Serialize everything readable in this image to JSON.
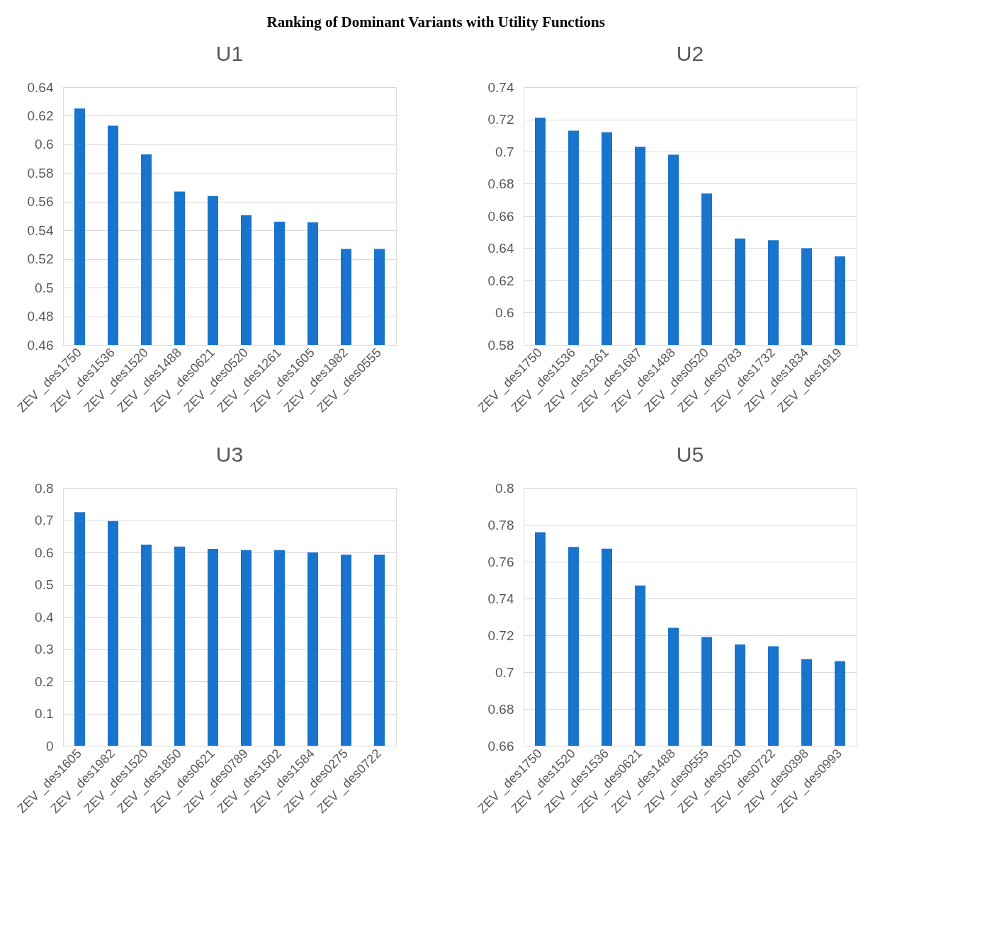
{
  "chart_data": [
    {
      "type": "bar",
      "title": "U1",
      "annotations": [
        "Ranking of Dominant Variants with Utility Functions"
      ],
      "categories": [
        "ZEV _des1750",
        "ZEV _des1536",
        "ZEV _des1520",
        "ZEV _des1488",
        "ZEV _des0621",
        "ZEV _des0520",
        "ZEV _des1261",
        "ZEV _des1605",
        "ZEV _des1982",
        "ZEV _des0555"
      ],
      "values": [
        0.625,
        0.613,
        0.593,
        0.567,
        0.564,
        0.5505,
        0.546,
        0.5455,
        0.527,
        0.527
      ],
      "color": "#1874cd",
      "ylim": [
        0.46,
        0.64
      ],
      "yticks": [
        0.46,
        0.48,
        {
          "value": 0.5,
          "label": "0.5"
        },
        0.52,
        0.54,
        0.56,
        0.58,
        {
          "value": 0.6,
          "label": "0.6"
        },
        0.62,
        0.64
      ],
      "grid": "y"
    },
    {
      "type": "bar",
      "title": "U2",
      "categories": [
        "ZEV _des1750",
        "ZEV _des1536",
        "ZEV _des1261",
        "ZEV _des1687",
        "ZEV _des1488",
        "ZEV _des0520",
        "ZEV _des0783",
        "ZEV _des1732",
        "ZEV _des1834",
        "ZEV _des1919"
      ],
      "values": [
        0.721,
        0.713,
        0.712,
        0.703,
        0.698,
        0.674,
        0.646,
        0.645,
        0.64,
        0.635
      ],
      "color": "#1874cd",
      "ylim": [
        0.58,
        0.74
      ],
      "yticks": [
        0.58,
        {
          "value": 0.6,
          "label": "0.6"
        },
        0.62,
        0.64,
        0.66,
        0.68,
        {
          "value": 0.7,
          "label": "0.7"
        },
        0.72,
        0.74
      ],
      "grid": "y"
    },
    {
      "type": "bar",
      "title": "U3",
      "categories": [
        "ZEV _des1605",
        "ZEV _des1982",
        "ZEV _des1520",
        "ZEV _des1850",
        "ZEV _des0621",
        "ZEV _des0789",
        "ZEV _des1502",
        "ZEV _des1584",
        "ZEV _des0275",
        "ZEV _des0722"
      ],
      "values": [
        0.725,
        0.697,
        0.624,
        0.618,
        0.611,
        0.607,
        0.607,
        0.6,
        0.593,
        0.593
      ],
      "color": "#1874cd",
      "ylim": [
        0,
        0.8
      ],
      "yticks": [
        0,
        0.1,
        0.2,
        0.3,
        0.4,
        0.5,
        0.6,
        0.7,
        0.8
      ],
      "grid": "y"
    },
    {
      "type": "bar",
      "title": "U5",
      "categories": [
        "ZEV _des1750",
        "ZEV _des1520",
        "ZEV _des1536",
        "ZEV _des0621",
        "ZEV _des1488",
        "ZEV _des0555",
        "ZEV _des0520",
        "ZEV _des0722",
        "ZEV _des0398",
        "ZEV _des0993"
      ],
      "values": [
        0.776,
        0.768,
        0.767,
        0.747,
        0.724,
        0.719,
        0.715,
        0.714,
        0.707,
        0.706
      ],
      "color": "#1874cd",
      "ylim": [
        0.66,
        0.8
      ],
      "yticks": [
        0.66,
        0.68,
        {
          "value": 0.7,
          "label": "0.7"
        },
        0.72,
        0.74,
        0.76,
        0.78,
        {
          "value": 0.8,
          "label": "0.8"
        }
      ],
      "grid": "y"
    }
  ]
}
